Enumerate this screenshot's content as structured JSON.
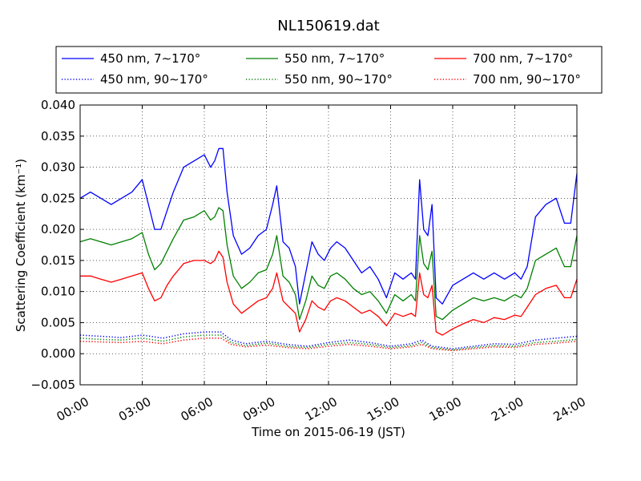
{
  "chart_data": {
    "type": "line",
    "title": "NL150619.dat",
    "xlabel": "Time on 2015-06-19 (JST)",
    "ylabel": "Scattering Coefficient (km⁻¹)",
    "x_unit": "hours",
    "xlim": [
      0,
      24
    ],
    "ylim": [
      -0.005,
      0.04
    ],
    "grid": true,
    "legend_position": "top",
    "xticks": [
      0,
      3,
      6,
      9,
      12,
      15,
      18,
      21,
      24
    ],
    "xtick_labels": [
      "00:00",
      "03:00",
      "06:00",
      "09:00",
      "12:00",
      "15:00",
      "18:00",
      "21:00",
      "24:00"
    ],
    "yticks": [
      -0.005,
      0,
      0.005,
      0.01,
      0.015,
      0.02,
      0.025,
      0.03,
      0.035,
      0.04
    ],
    "ytick_labels": [
      "−0.005",
      "0.000",
      "0.005",
      "0.010",
      "0.015",
      "0.020",
      "0.025",
      "0.030",
      "0.035",
      "0.040"
    ],
    "series": [
      {
        "name": "450 nm, 7∼170°",
        "color": "#0000ff",
        "style": "solid",
        "x": [
          0,
          0.5,
          1,
          1.5,
          2,
          2.5,
          3,
          3.3,
          3.6,
          3.9,
          4.2,
          4.5,
          5,
          5.5,
          6,
          6.3,
          6.5,
          6.7,
          6.9,
          7.1,
          7.4,
          7.8,
          8.2,
          8.6,
          9.0,
          9.3,
          9.5,
          9.8,
          10.1,
          10.4,
          10.6,
          10.9,
          11.2,
          11.5,
          11.8,
          12.1,
          12.4,
          12.8,
          13.2,
          13.6,
          14.0,
          14.4,
          14.8,
          15.2,
          15.6,
          16.0,
          16.2,
          16.4,
          16.6,
          16.8,
          17.0,
          17.2,
          17.5,
          18.0,
          18.5,
          19.0,
          19.5,
          20.0,
          20.5,
          21.0,
          21.3,
          21.6,
          22.0,
          22.5,
          23.0,
          23.4,
          23.7,
          24.0
        ],
        "y": [
          0.025,
          0.026,
          0.025,
          0.024,
          0.025,
          0.026,
          0.028,
          0.024,
          0.02,
          0.02,
          0.023,
          0.026,
          0.03,
          0.031,
          0.032,
          0.03,
          0.031,
          0.033,
          0.033,
          0.026,
          0.019,
          0.016,
          0.017,
          0.019,
          0.02,
          0.024,
          0.027,
          0.018,
          0.017,
          0.014,
          0.008,
          0.013,
          0.018,
          0.016,
          0.015,
          0.017,
          0.018,
          0.017,
          0.015,
          0.013,
          0.014,
          0.012,
          0.009,
          0.013,
          0.012,
          0.013,
          0.012,
          0.028,
          0.02,
          0.019,
          0.024,
          0.009,
          0.008,
          0.011,
          0.012,
          0.013,
          0.012,
          0.013,
          0.012,
          0.013,
          0.012,
          0.014,
          0.022,
          0.024,
          0.025,
          0.021,
          0.021,
          0.029
        ]
      },
      {
        "name": "450 nm, 90∼170°",
        "color": "#0000ff",
        "style": "dotted",
        "x": [
          0,
          1,
          2,
          3,
          4,
          5,
          6,
          6.8,
          7.3,
          8,
          9,
          10,
          11,
          12,
          13,
          14,
          15,
          16,
          16.5,
          17,
          18,
          19,
          20,
          21,
          22,
          23,
          24
        ],
        "y": [
          0.003,
          0.0028,
          0.0026,
          0.003,
          0.0025,
          0.0032,
          0.0035,
          0.0035,
          0.0022,
          0.0016,
          0.002,
          0.0015,
          0.0012,
          0.0018,
          0.0022,
          0.0018,
          0.0012,
          0.0016,
          0.0022,
          0.0012,
          0.0008,
          0.0012,
          0.0016,
          0.0015,
          0.0022,
          0.0025,
          0.0028
        ]
      },
      {
        "name": "550 nm, 7∼170°",
        "color": "#008000",
        "style": "solid",
        "x": [
          0,
          0.5,
          1,
          1.5,
          2,
          2.5,
          3,
          3.3,
          3.6,
          3.9,
          4.2,
          4.5,
          5,
          5.5,
          6,
          6.3,
          6.5,
          6.7,
          6.9,
          7.1,
          7.4,
          7.8,
          8.2,
          8.6,
          9.0,
          9.3,
          9.5,
          9.8,
          10.1,
          10.4,
          10.6,
          10.9,
          11.2,
          11.5,
          11.8,
          12.1,
          12.4,
          12.8,
          13.2,
          13.6,
          14.0,
          14.4,
          14.8,
          15.2,
          15.6,
          16.0,
          16.2,
          16.4,
          16.6,
          16.8,
          17.0,
          17.2,
          17.5,
          18.0,
          18.5,
          19.0,
          19.5,
          20.0,
          20.5,
          21.0,
          21.3,
          21.6,
          22.0,
          22.5,
          23.0,
          23.4,
          23.7,
          24.0
        ],
        "y": [
          0.018,
          0.0185,
          0.018,
          0.0175,
          0.018,
          0.0185,
          0.0195,
          0.016,
          0.0135,
          0.0145,
          0.0165,
          0.0185,
          0.0215,
          0.022,
          0.023,
          0.0215,
          0.022,
          0.0235,
          0.023,
          0.0175,
          0.0125,
          0.0105,
          0.0115,
          0.013,
          0.0135,
          0.016,
          0.019,
          0.0125,
          0.0115,
          0.0095,
          0.0055,
          0.0085,
          0.0125,
          0.011,
          0.0105,
          0.0125,
          0.013,
          0.012,
          0.0105,
          0.0095,
          0.01,
          0.0085,
          0.0065,
          0.0095,
          0.0085,
          0.0095,
          0.0085,
          0.019,
          0.0145,
          0.0135,
          0.0165,
          0.006,
          0.0055,
          0.007,
          0.008,
          0.009,
          0.0085,
          0.009,
          0.0085,
          0.0095,
          0.009,
          0.0105,
          0.015,
          0.016,
          0.017,
          0.014,
          0.014,
          0.019
        ]
      },
      {
        "name": "550 nm, 90∼170°",
        "color": "#008000",
        "style": "dotted",
        "x": [
          0,
          1,
          2,
          3,
          4,
          5,
          6,
          6.8,
          7.3,
          8,
          9,
          10,
          11,
          12,
          13,
          14,
          15,
          16,
          16.5,
          17,
          18,
          19,
          20,
          21,
          22,
          23,
          24
        ],
        "y": [
          0.0025,
          0.0023,
          0.0022,
          0.0025,
          0.002,
          0.0027,
          0.003,
          0.003,
          0.0018,
          0.0013,
          0.0017,
          0.0012,
          0.001,
          0.0015,
          0.0018,
          0.0015,
          0.001,
          0.0013,
          0.0018,
          0.001,
          0.0006,
          0.001,
          0.0013,
          0.0012,
          0.0018,
          0.002,
          0.0023
        ]
      },
      {
        "name": "700 nm, 7∼170°",
        "color": "#ff0000",
        "style": "solid",
        "x": [
          0,
          0.5,
          1,
          1.5,
          2,
          2.5,
          3,
          3.3,
          3.6,
          3.9,
          4.2,
          4.5,
          5,
          5.5,
          6,
          6.3,
          6.5,
          6.7,
          6.9,
          7.1,
          7.4,
          7.8,
          8.2,
          8.6,
          9.0,
          9.3,
          9.5,
          9.8,
          10.1,
          10.4,
          10.6,
          10.9,
          11.2,
          11.5,
          11.8,
          12.1,
          12.4,
          12.8,
          13.2,
          13.6,
          14.0,
          14.4,
          14.8,
          15.2,
          15.6,
          16.0,
          16.2,
          16.4,
          16.6,
          16.8,
          17.0,
          17.2,
          17.5,
          18.0,
          18.5,
          19.0,
          19.5,
          20.0,
          20.5,
          21.0,
          21.3,
          21.6,
          22.0,
          22.5,
          23.0,
          23.4,
          23.7,
          24.0
        ],
        "y": [
          0.0125,
          0.0125,
          0.012,
          0.0115,
          0.012,
          0.0125,
          0.013,
          0.0105,
          0.0085,
          0.009,
          0.011,
          0.0125,
          0.0145,
          0.015,
          0.015,
          0.0145,
          0.015,
          0.0165,
          0.0155,
          0.0115,
          0.008,
          0.0065,
          0.0075,
          0.0085,
          0.009,
          0.0105,
          0.013,
          0.0085,
          0.0075,
          0.0065,
          0.0035,
          0.0055,
          0.0085,
          0.0075,
          0.007,
          0.0085,
          0.009,
          0.0085,
          0.0075,
          0.0065,
          0.007,
          0.006,
          0.0045,
          0.0065,
          0.006,
          0.0065,
          0.006,
          0.013,
          0.0095,
          0.009,
          0.011,
          0.0035,
          0.003,
          0.004,
          0.0048,
          0.0055,
          0.005,
          0.0058,
          0.0055,
          0.0062,
          0.006,
          0.0075,
          0.0095,
          0.0105,
          0.011,
          0.009,
          0.009,
          0.012
        ]
      },
      {
        "name": "700 nm, 90∼170°",
        "color": "#ff0000",
        "style": "dotted",
        "x": [
          0,
          1,
          2,
          3,
          4,
          5,
          6,
          6.8,
          7.3,
          8,
          9,
          10,
          11,
          12,
          13,
          14,
          15,
          16,
          16.5,
          17,
          18,
          19,
          20,
          21,
          22,
          23,
          24
        ],
        "y": [
          0.002,
          0.0019,
          0.0018,
          0.002,
          0.0016,
          0.0022,
          0.0025,
          0.0025,
          0.0015,
          0.0011,
          0.0014,
          0.001,
          0.0008,
          0.0012,
          0.0015,
          0.0012,
          0.0008,
          0.0011,
          0.0015,
          0.0008,
          0.0005,
          0.0008,
          0.0011,
          0.001,
          0.0015,
          0.0017,
          0.002
        ]
      }
    ]
  }
}
